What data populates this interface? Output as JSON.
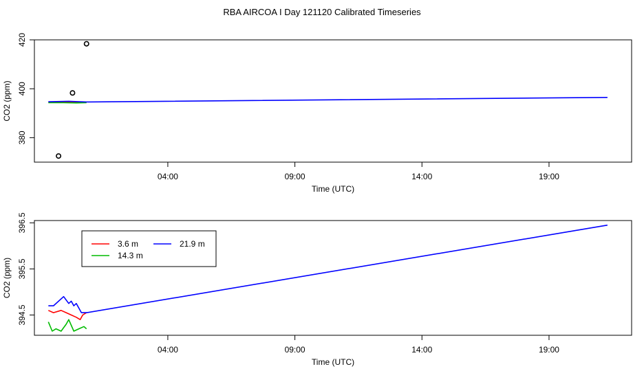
{
  "title": "RBA AIRCOA I  Day 121120  Calibrated Timeseries",
  "chart_data": [
    {
      "type": "line",
      "xlabel": "Time (UTC)",
      "ylabel": "CO2 (ppm)",
      "xlim": [
        -1.25,
        22.25
      ],
      "ylim": [
        370,
        420
      ],
      "xticks": [
        4,
        9,
        14,
        19
      ],
      "xtick_labels": [
        "04:00",
        "09:00",
        "14:00",
        "19:00"
      ],
      "yticks": [
        380,
        400,
        420
      ],
      "ytick_labels": [
        "380",
        "400",
        "420"
      ],
      "grid": false,
      "series": [
        {
          "color": "#ff0000",
          "x": [
            -0.7,
            -0.1,
            0.4,
            0.8
          ],
          "y": [
            394.5,
            394.6,
            394.4,
            394.5
          ]
        },
        {
          "color": "#00bb00",
          "x": [
            -0.7,
            -0.1,
            0.4,
            0.8
          ],
          "y": [
            394.3,
            394.3,
            394.2,
            394.3
          ]
        },
        {
          "color": "#0000ff",
          "x": [
            -0.7,
            0.1,
            0.8,
            21.3
          ],
          "y": [
            394.7,
            394.9,
            394.6,
            396.45
          ]
        }
      ],
      "outliers": [
        {
          "x": -0.3,
          "y": 372.5
        },
        {
          "x": 0.25,
          "y": 398.3
        },
        {
          "x": 0.8,
          "y": 418.4
        }
      ]
    },
    {
      "type": "line",
      "xlabel": "Time (UTC)",
      "ylabel": "CO2 (ppm)",
      "xlim": [
        -1.25,
        22.25
      ],
      "ylim": [
        394.06,
        396.55
      ],
      "xticks": [
        4,
        9,
        14,
        19
      ],
      "xtick_labels": [
        "04:00",
        "09:00",
        "14:00",
        "19:00"
      ],
      "yticks": [
        394.5,
        395.5,
        396.5
      ],
      "ytick_labels": [
        "394.5",
        "395.5",
        "396.5"
      ],
      "grid": false,
      "legend_position": "top-left",
      "series": [
        {
          "name": "3.6 m",
          "color": "#ff0000",
          "x": [
            -0.7,
            -0.5,
            -0.2,
            0.0,
            0.2,
            0.4,
            0.55,
            0.65,
            0.8
          ],
          "y": [
            394.6,
            394.55,
            394.6,
            394.55,
            394.5,
            394.45,
            394.4,
            394.5,
            394.55
          ]
        },
        {
          "name": "14.3 m",
          "color": "#00bb00",
          "x": [
            -0.7,
            -0.55,
            -0.4,
            -0.2,
            0.0,
            0.1,
            0.3,
            0.5,
            0.7,
            0.8
          ],
          "y": [
            394.35,
            394.15,
            394.2,
            394.15,
            394.3,
            394.4,
            394.15,
            394.2,
            394.25,
            394.2
          ]
        },
        {
          "name": "21.9 m",
          "color": "#0000ff",
          "x": [
            -0.7,
            -0.5,
            -0.1,
            0.1,
            0.2,
            0.3,
            0.4,
            0.5,
            0.6,
            0.8,
            21.3
          ],
          "y": [
            394.7,
            394.7,
            394.9,
            394.75,
            394.8,
            394.7,
            394.75,
            394.65,
            394.55,
            394.55,
            396.45
          ]
        }
      ]
    }
  ]
}
